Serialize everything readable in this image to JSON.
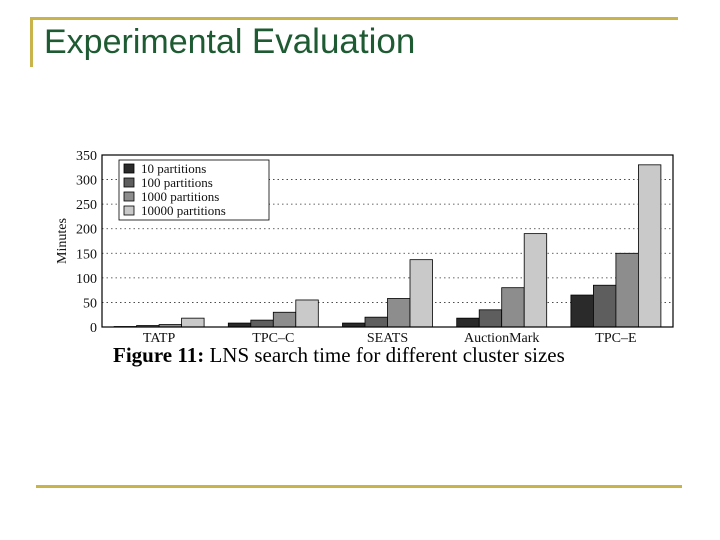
{
  "slide": {
    "title_part1": "Experimental",
    "title_part2": "Evaluation",
    "accent_color": "#c8b44a",
    "title_color": "#1e5b33"
  },
  "figure": {
    "label": "Figure 11:",
    "caption": "LNS search time for different cluster sizes"
  },
  "chart_data": {
    "type": "bar",
    "categories": [
      "TATP",
      "TPC–C",
      "SEATS",
      "AuctionMark",
      "TPC–E"
    ],
    "series": [
      {
        "name": "10 partitions",
        "color": "#2a2a2a",
        "values": [
          1,
          8,
          8,
          18,
          65
        ]
      },
      {
        "name": "100 partitions",
        "color": "#5e5e5e",
        "values": [
          3,
          14,
          20,
          35,
          85
        ]
      },
      {
        "name": "1000 partitions",
        "color": "#8d8d8d",
        "values": [
          5,
          30,
          58,
          80,
          150
        ]
      },
      {
        "name": "10000 partitions",
        "color": "#c9c9c9",
        "values": [
          18,
          55,
          137,
          190,
          330
        ]
      }
    ],
    "xlabel": "",
    "ylabel": "Minutes",
    "ylim": [
      0,
      350
    ],
    "yticks": [
      0,
      50,
      100,
      150,
      200,
      250,
      300,
      350
    ],
    "grid": "horizontal dotted",
    "legend": "top-left"
  }
}
